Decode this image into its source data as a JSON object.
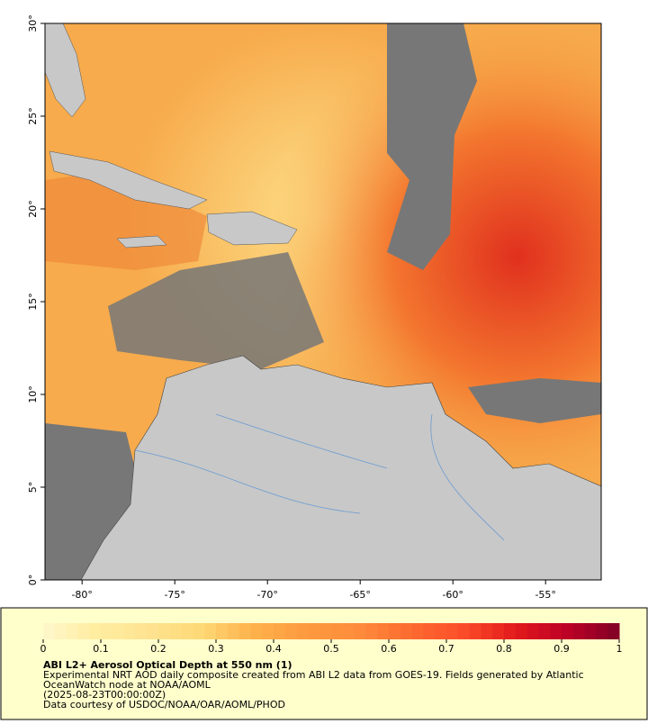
{
  "map": {
    "xlim": [
      -82,
      -52
    ],
    "ylim": [
      0,
      30
    ],
    "xticks": [
      {
        "value": -80,
        "label": "-80°"
      },
      {
        "value": -75,
        "label": "-75°"
      },
      {
        "value": -70,
        "label": "-70°"
      },
      {
        "value": -65,
        "label": "-65°"
      },
      {
        "value": -60,
        "label": "-60°"
      },
      {
        "value": -55,
        "label": "-55°"
      }
    ],
    "yticks": [
      {
        "value": 0,
        "label": "0°"
      },
      {
        "value": 5,
        "label": "5°"
      },
      {
        "value": 10,
        "label": "10°"
      },
      {
        "value": 15,
        "label": "15°"
      },
      {
        "value": 20,
        "label": "20°"
      },
      {
        "value": 25,
        "label": "25°"
      },
      {
        "value": 30,
        "label": "30°"
      }
    ]
  },
  "colorbar": {
    "lim": [
      0,
      1
    ],
    "ticks": [
      0,
      0.1,
      0.2,
      0.3,
      0.4,
      0.5,
      0.6,
      0.7,
      0.8,
      0.9,
      1
    ],
    "colors": [
      "#fff7cc",
      "#ffeda0",
      "#fee391",
      "#fed976",
      "#feb24c",
      "#fd9a3f",
      "#fd8d3c",
      "#fc6b30",
      "#fc4e2a",
      "#e31a1c",
      "#bd0026",
      "#800026"
    ]
  },
  "caption": {
    "title": "ABI L2+ Aerosol Optical Depth at 550 nm (1)",
    "lines": [
      "Experimental NRT AOD daily composite created from ABI L2 data from GOES-19. Fields generated by Atlantic",
      "OceanWatch node at NOAA/AOML",
      "(2025-08-23T00:00:00Z)",
      "Data courtesy of USDOC/NOAA/OAR/AOML/PHOD"
    ]
  }
}
